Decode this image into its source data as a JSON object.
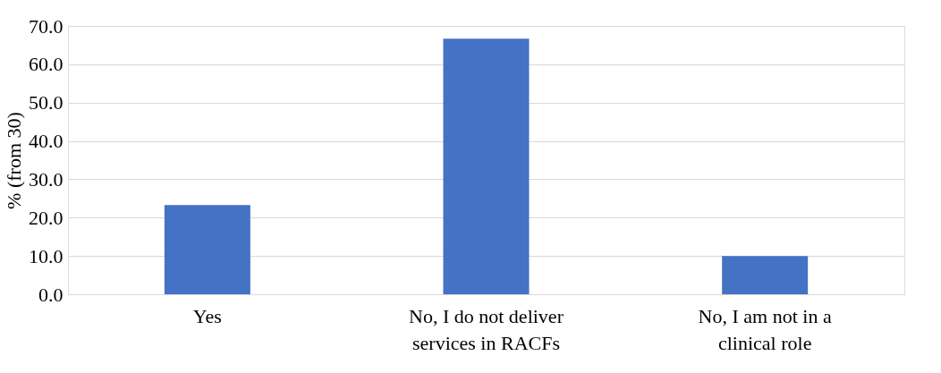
{
  "chart_data": {
    "type": "bar",
    "ylabel": "% (from 30)",
    "categories": [
      "Yes",
      "No, I do not deliver services in RACFs",
      "No, I am not in a clinical role"
    ],
    "values": [
      23.3,
      66.7,
      10.0
    ],
    "color": "#4472c4",
    "ylim": [
      0,
      70
    ],
    "yticks": [
      {
        "value": 0,
        "label": "0.0"
      },
      {
        "value": 10,
        "label": "10.0"
      },
      {
        "value": 20,
        "label": "20.0"
      },
      {
        "value": 30,
        "label": "30.0"
      },
      {
        "value": 40,
        "label": "40.0"
      },
      {
        "value": 50,
        "label": "50.0"
      },
      {
        "value": 60,
        "label": "60.0"
      },
      {
        "value": 70,
        "label": "70.0"
      }
    ],
    "grid": "y"
  }
}
